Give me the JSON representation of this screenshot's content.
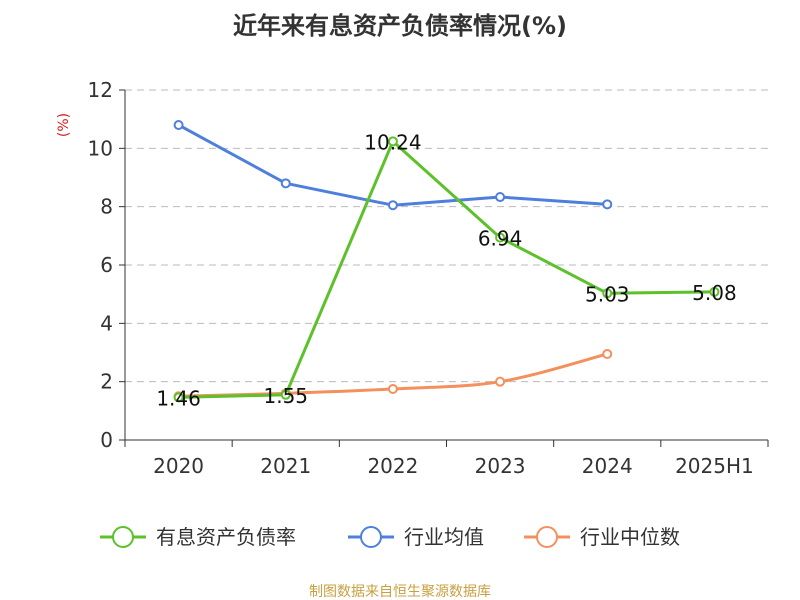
{
  "chart_data": {
    "type": "line",
    "title": "近年来有息资产负债率情况(%)",
    "ylabel": "(%)",
    "xlabel": "",
    "categories": [
      "2020",
      "2021",
      "2022",
      "2023",
      "2024",
      "2025H1"
    ],
    "ylim": [
      0,
      12
    ],
    "yticks": [
      "0",
      "2",
      "4",
      "6",
      "8",
      "10",
      "12"
    ],
    "grid": true,
    "legend_position": "bottom",
    "series": [
      {
        "name": "有息资产负债率",
        "color": "#5cc12a",
        "values": [
          1.46,
          1.55,
          10.24,
          6.94,
          5.03,
          5.08
        ],
        "labels": [
          "1.46",
          "1.55",
          "10.24",
          "6.94",
          "5.03",
          "5.08"
        ]
      },
      {
        "name": "行业均值",
        "color": "#4e7fdc",
        "values": [
          10.8,
          8.8,
          8.05,
          8.33,
          8.08,
          null
        ]
      },
      {
        "name": "行业中位数",
        "color": "#f4905d",
        "values": [
          1.5,
          1.6,
          1.75,
          2.0,
          2.95,
          null
        ]
      }
    ],
    "source": "制图数据来自恒生聚源数据库",
    "source_color": "#c8a040",
    "unit_color": "#cc2222"
  }
}
